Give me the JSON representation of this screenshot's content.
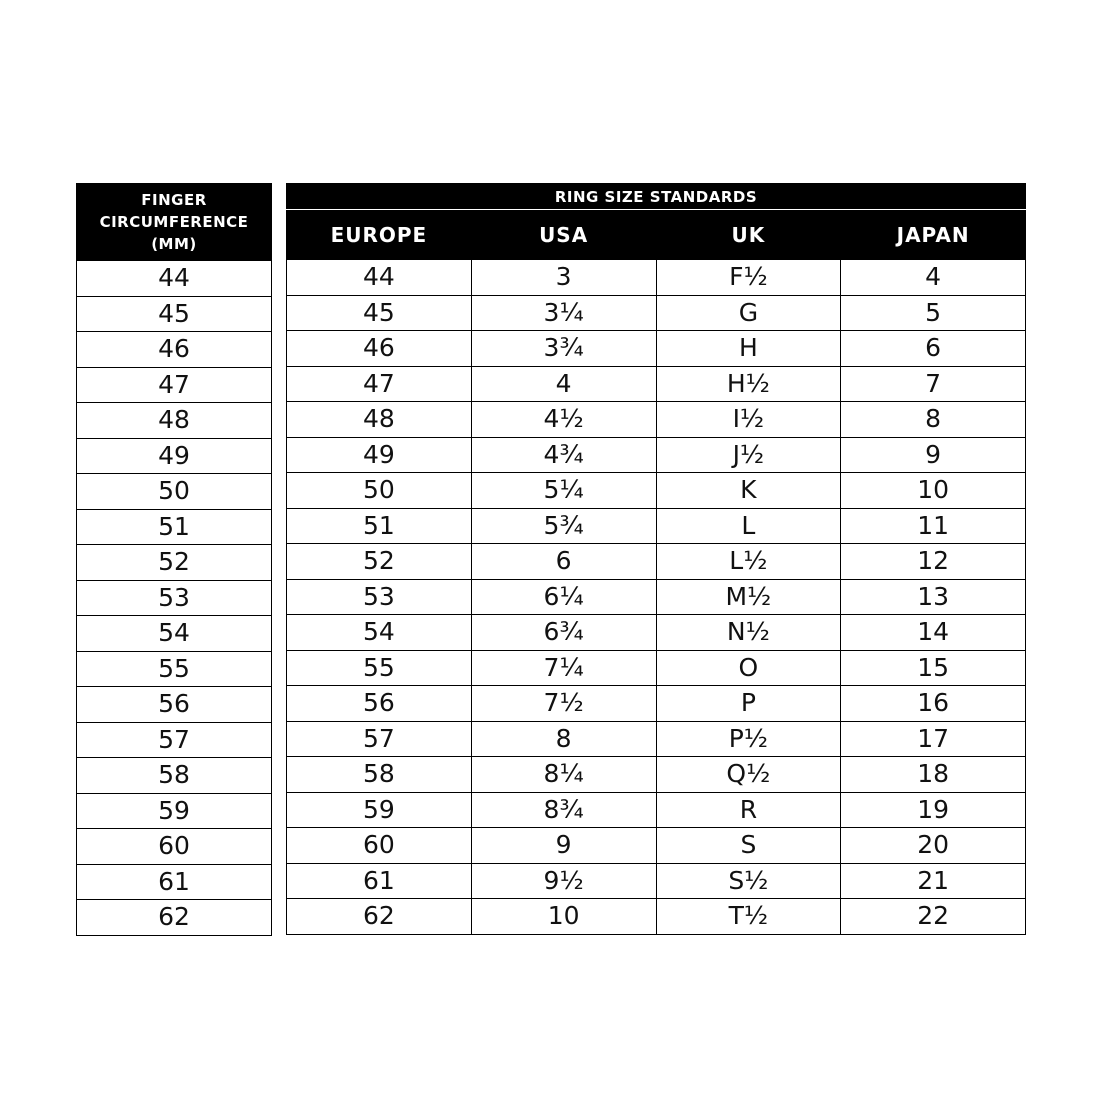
{
  "left_table": {
    "header": "FINGER CIRCUMFERENCE (MM)",
    "rows": [
      "44",
      "45",
      "46",
      "47",
      "48",
      "49",
      "50",
      "51",
      "52",
      "53",
      "54",
      "55",
      "56",
      "57",
      "58",
      "59",
      "60",
      "61",
      "62"
    ]
  },
  "right_table": {
    "title": "RING SIZE STANDARDS",
    "columns": [
      "EUROPE",
      "USA",
      "UK",
      "JAPAN"
    ],
    "rows": [
      [
        "44",
        "3",
        "F½",
        "4"
      ],
      [
        "45",
        "3¼",
        "G",
        "5"
      ],
      [
        "46",
        "3¾",
        "H",
        "6"
      ],
      [
        "47",
        "4",
        "H½",
        "7"
      ],
      [
        "48",
        "4½",
        "I½",
        "8"
      ],
      [
        "49",
        "4¾",
        "J½",
        "9"
      ],
      [
        "50",
        "5¼",
        "K",
        "10"
      ],
      [
        "51",
        "5¾",
        "L",
        "11"
      ],
      [
        "52",
        "6",
        "L½",
        "12"
      ],
      [
        "53",
        "6¼",
        "M½",
        "13"
      ],
      [
        "54",
        "6¾",
        "N½",
        "14"
      ],
      [
        "55",
        "7¼",
        "O",
        "15"
      ],
      [
        "56",
        "7½",
        "P",
        "16"
      ],
      [
        "57",
        "8",
        "P½",
        "17"
      ],
      [
        "58",
        "8¼",
        "Q½",
        "18"
      ],
      [
        "59",
        "8¾",
        "R",
        "19"
      ],
      [
        "60",
        "9",
        "S",
        "20"
      ],
      [
        "61",
        "9½",
        "S½",
        "21"
      ],
      [
        "62",
        "10",
        "T½",
        "22"
      ]
    ]
  },
  "colors": {
    "header_bg": "#000000",
    "header_text": "#ffffff",
    "border": "#000000"
  }
}
